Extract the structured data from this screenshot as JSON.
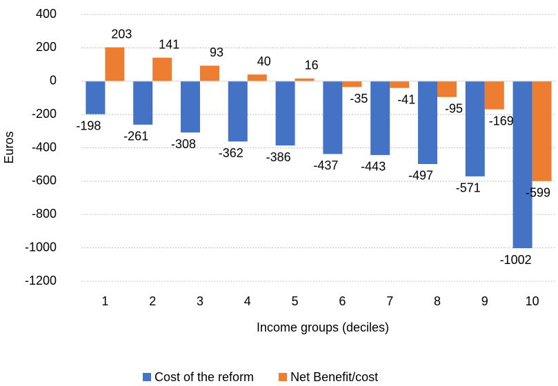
{
  "chart_data": {
    "type": "bar",
    "x_label": "Income groups (deciles)",
    "y_label": "Euros",
    "categories": [
      "1",
      "2",
      "3",
      "4",
      "5",
      "6",
      "7",
      "8",
      "9",
      "10"
    ],
    "series": [
      {
        "name": "Cost of the reform",
        "color": "#4472c4",
        "values": [
          -198,
          -261,
          -308,
          -362,
          -386,
          -437,
          -443,
          -497,
          -571,
          -1002
        ]
      },
      {
        "name": "Net Benefit/cost",
        "color": "#ed7d31",
        "values": [
          203,
          141,
          93,
          40,
          16,
          -35,
          -41,
          -95,
          -169,
          -599
        ]
      }
    ],
    "ylim": [
      -1200,
      400
    ],
    "yticks": [
      -1200,
      -1000,
      -800,
      -600,
      -400,
      -200,
      0,
      200,
      400
    ],
    "grid": true,
    "legend": "bottom"
  }
}
